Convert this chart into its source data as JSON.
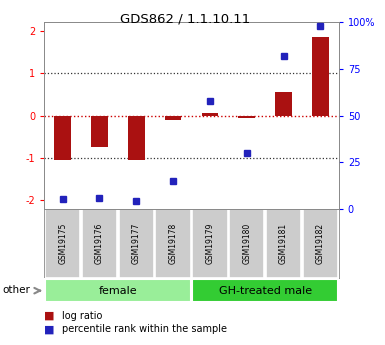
{
  "title": "GDS862 / 1.1.10.11",
  "samples": [
    "GSM19175",
    "GSM19176",
    "GSM19177",
    "GSM19178",
    "GSM19179",
    "GSM19180",
    "GSM19181",
    "GSM19182"
  ],
  "log_ratio": [
    -1.05,
    -0.75,
    -1.05,
    -0.1,
    0.05,
    -0.05,
    0.55,
    1.85
  ],
  "percentile_rank": [
    5,
    6,
    4,
    15,
    58,
    30,
    82,
    98
  ],
  "groups": [
    {
      "label": "female",
      "indices": [
        0,
        1,
        2,
        3
      ],
      "color": "#99ee99"
    },
    {
      "label": "GH-treated male",
      "indices": [
        4,
        5,
        6,
        7
      ],
      "color": "#33cc33"
    }
  ],
  "ylim_left": [
    -2.2,
    2.2
  ],
  "ylim_right": [
    0,
    100
  ],
  "yticks_left": [
    -2,
    -1,
    0,
    1,
    2
  ],
  "yticks_right": [
    0,
    25,
    50,
    75,
    100
  ],
  "bar_color": "#aa1111",
  "dot_color": "#2222bb",
  "hline0_color": "#cc0000",
  "hline_color": "#333333",
  "background_color": "#ffffff",
  "sample_box_color": "#cccccc",
  "bar_width": 0.45
}
